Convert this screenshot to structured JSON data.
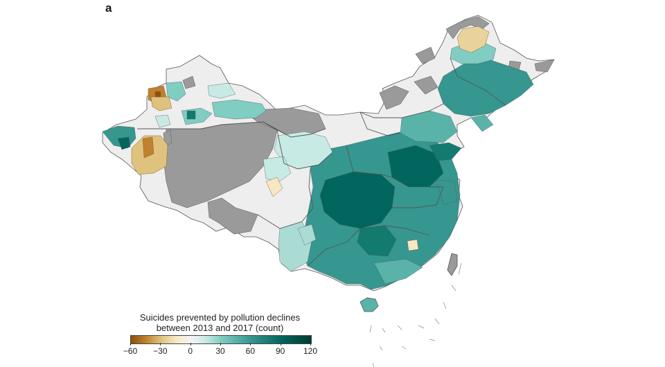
{
  "panel_label": "a",
  "legend": {
    "title_line1": "Suicides prevented by pollution declines",
    "title_line2": "between 2013 and 2017 (count)",
    "ticks": [
      "−60",
      "−30",
      "0",
      "30",
      "60",
      "90",
      "120"
    ],
    "min": -60,
    "max": 120,
    "color_stops": [
      {
        "value": -60,
        "color": "#8c510a"
      },
      {
        "value": -45,
        "color": "#bf812d"
      },
      {
        "value": -30,
        "color": "#dfc27d"
      },
      {
        "value": -15,
        "color": "#f6e8c3"
      },
      {
        "value": 0,
        "color": "#f5f5f5"
      },
      {
        "value": 15,
        "color": "#c7eae5"
      },
      {
        "value": 30,
        "color": "#80cdc1"
      },
      {
        "value": 60,
        "color": "#35978f"
      },
      {
        "value": 90,
        "color": "#01665e"
      },
      {
        "value": 120,
        "color": "#003c30"
      }
    ]
  },
  "colors": {
    "no_data": "#9a9a9a",
    "boundary": "#555555",
    "near_zero": "#eeeeee"
  }
}
